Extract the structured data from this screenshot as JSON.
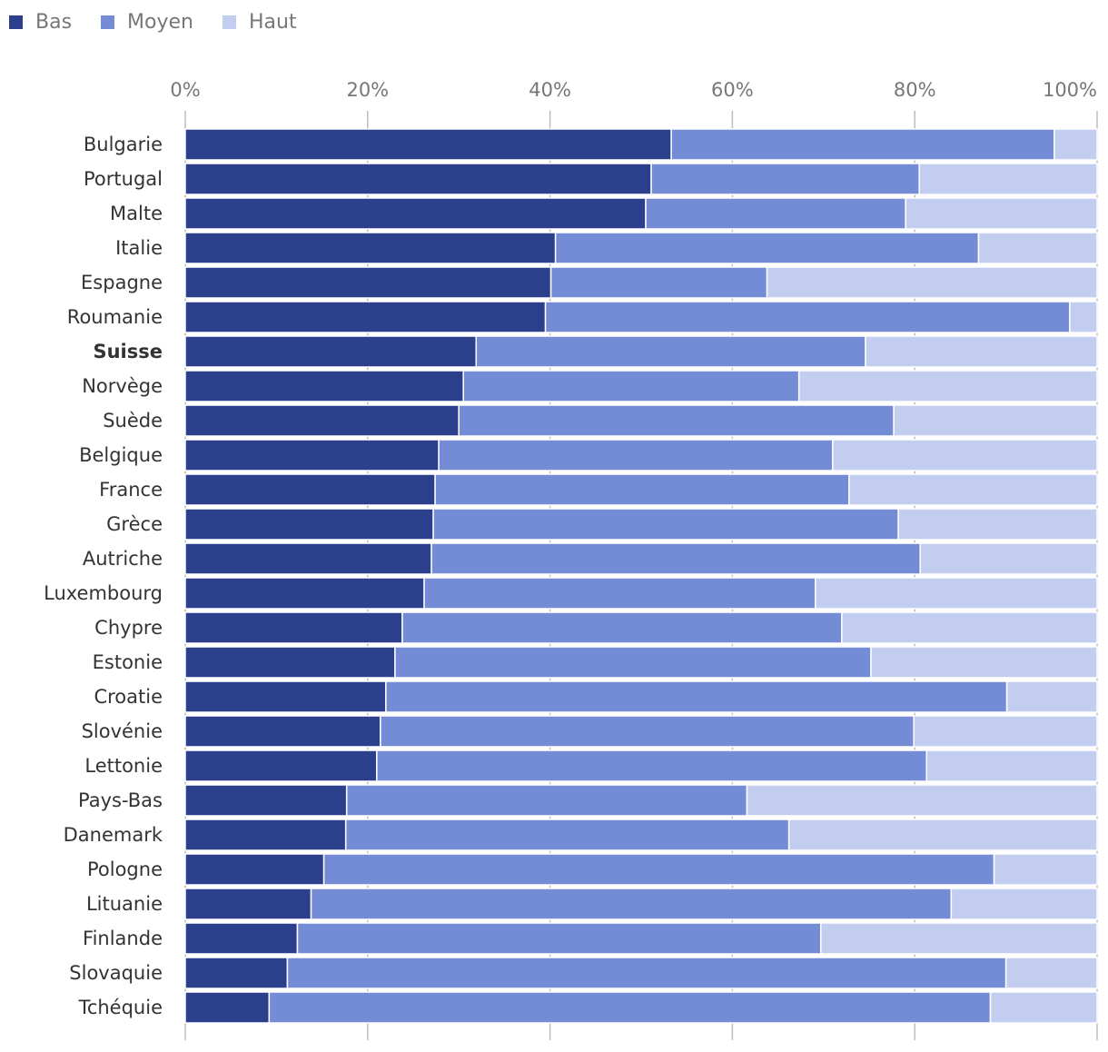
{
  "legend": [
    {
      "name": "Bas",
      "color": "#2b3f8c"
    },
    {
      "name": "Moyen",
      "color": "#748bd6"
    },
    {
      "name": "Haut",
      "color": "#c3cdf0"
    }
  ],
  "chart_data": {
    "type": "bar",
    "orientation": "horizontal",
    "stacked": true,
    "legend_position": "top-left",
    "xlim": [
      0,
      100
    ],
    "x_ticks": [
      "0%",
      "20%",
      "40%",
      "60%",
      "80%",
      "100%"
    ],
    "highlighted_category": "Suisse",
    "categories": [
      "Bulgarie",
      "Portugal",
      "Malte",
      "Italie",
      "Espagne",
      "Roumanie",
      "Suisse",
      "Norvège",
      "Suède",
      "Belgique",
      "France",
      "Grèce",
      "Autriche",
      "Luxembourg",
      "Chypre",
      "Estonie",
      "Croatie",
      "Slovénie",
      "Lettonie",
      "Pays-Bas",
      "Danemark",
      "Pologne",
      "Lituanie",
      "Finlande",
      "Slovaquie",
      "Tchéquie"
    ],
    "series": [
      {
        "name": "Bas",
        "color": "#2b3f8c",
        "values": [
          53.3,
          51.1,
          50.5,
          40.6,
          40.1,
          39.5,
          31.9,
          30.5,
          30.0,
          27.8,
          27.4,
          27.2,
          27.0,
          26.2,
          23.8,
          23.0,
          22.0,
          21.4,
          21.0,
          17.7,
          17.6,
          15.2,
          13.8,
          12.3,
          11.2,
          9.2
        ]
      },
      {
        "name": "Moyen",
        "color": "#748bd6",
        "values": [
          42.0,
          29.4,
          28.5,
          46.4,
          23.7,
          57.5,
          42.7,
          36.8,
          47.7,
          43.2,
          45.4,
          51.0,
          53.6,
          42.9,
          48.2,
          52.2,
          68.1,
          58.5,
          60.3,
          43.9,
          48.6,
          73.5,
          70.2,
          57.4,
          78.8,
          79.1
        ]
      },
      {
        "name": "Haut",
        "color": "#c3cdf0",
        "values": [
          4.7,
          19.5,
          21.0,
          13.0,
          36.2,
          3.0,
          25.4,
          32.7,
          22.3,
          29.0,
          27.2,
          21.8,
          19.4,
          30.9,
          28.0,
          24.8,
          9.9,
          20.1,
          18.7,
          38.4,
          33.8,
          11.3,
          16.0,
          30.3,
          10.0,
          11.7
        ]
      }
    ]
  }
}
